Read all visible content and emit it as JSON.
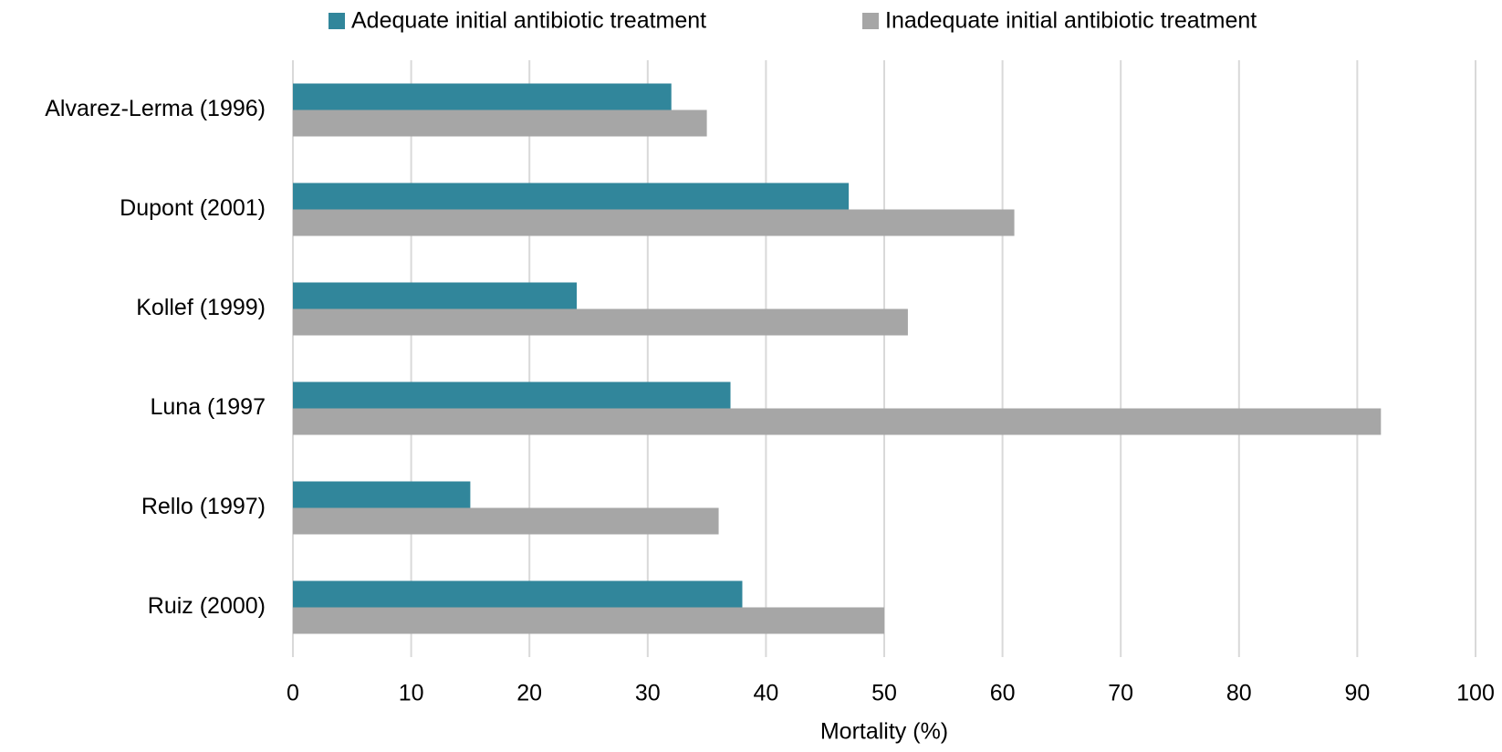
{
  "chart_data": {
    "type": "hbar",
    "categories": [
      "Alvarez-Lerma (1996)",
      "Dupont (2001)",
      "Kollef (1999)",
      "Luna (1997",
      "Rello (1997)",
      "Ruiz (2000)"
    ],
    "series": [
      {
        "name": "Adequate initial antibiotic treatment",
        "color": "#31869b",
        "values": [
          32,
          47,
          24,
          37,
          15,
          38
        ]
      },
      {
        "name": "Inadequate initial antibiotic treatment",
        "color": "#a6a6a6",
        "values": [
          35,
          61,
          52,
          92,
          36,
          50
        ]
      }
    ],
    "xlabel": "Mortality (%)",
    "xlim": [
      0,
      100
    ],
    "xticks": [
      0,
      10,
      20,
      30,
      40,
      50,
      60,
      70,
      80,
      90,
      100
    ],
    "grid": true,
    "legend": "top"
  }
}
